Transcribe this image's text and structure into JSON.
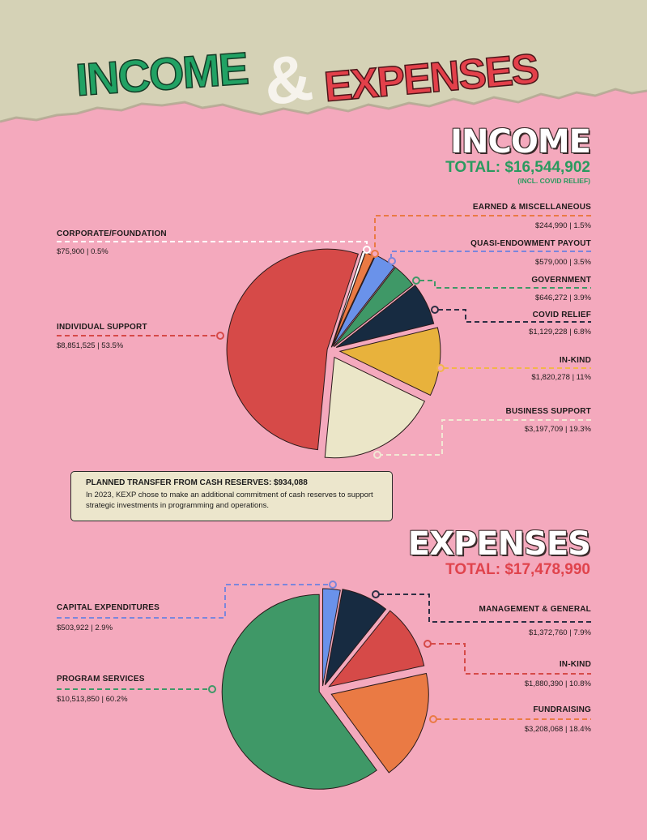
{
  "header": {
    "word1": "INCOME",
    "ampersand": "&",
    "word2": "EXPENSES"
  },
  "income": {
    "heading": "INCOME",
    "total_label": "TOTAL: $16,544,902",
    "total_note": "(INCL. COVID RELIEF)"
  },
  "note": {
    "title": "PLANNED TRANSFER FROM CASH RESERVES: $934,088",
    "body": "In 2023, KEXP chose to make an additional commitment of cash reserves to support strategic investments in programming and operations."
  },
  "expenses": {
    "heading": "EXPENSES",
    "total_label": "TOTAL: $17,478,990"
  },
  "colors": {
    "background": "#f4a9bd",
    "top_band": "#d5d2b6",
    "income_green": "#2a9a5f",
    "expense_red": "#e0434c"
  },
  "chart_data": [
    {
      "type": "pie",
      "title": "INCOME",
      "subtitle": "TOTAL: $16,544,902 (INCL. COVID RELIEF)",
      "total": 16544902,
      "slices": [
        {
          "label": "CORPORATE/FOUNDATION",
          "value": 75900,
          "value_text": "$75,900 | 0.5%",
          "percent": 0.5,
          "color": "#ffffff"
        },
        {
          "label": "EARNED & MISCELLANEOUS",
          "value": 244990,
          "value_text": "$244,990 | 1.5%",
          "percent": 1.5,
          "color": "#ea7a44"
        },
        {
          "label": "QUASI-ENDOWMENT PAYOUT",
          "value": 579000,
          "value_text": "$579,000 | 3.5%",
          "percent": 3.5,
          "color": "#6a92ea"
        },
        {
          "label": "GOVERNMENT",
          "value": 646272,
          "value_text": "$646,272 | 3.9%",
          "percent": 3.9,
          "color": "#3f9867"
        },
        {
          "label": "COVID RELIEF",
          "value": 1129228,
          "value_text": "$1,129,228 | 6.8%",
          "percent": 6.8,
          "color": "#172b41"
        },
        {
          "label": "IN-KIND",
          "value": 1820278,
          "value_text": "$1,820,278 | 11%",
          "percent": 11,
          "color": "#e8b23c"
        },
        {
          "label": "BUSINESS SUPPORT",
          "value": 3197709,
          "value_text": "$3,197,709 | 19.3%",
          "percent": 19.3,
          "color": "#ebe6c8"
        },
        {
          "label": "INDIVIDUAL SUPPORT",
          "value": 8851525,
          "value_text": "$8,851,525 | 53.5%",
          "percent": 53.5,
          "color": "#d64a48"
        }
      ]
    },
    {
      "type": "pie",
      "title": "EXPENSES",
      "subtitle": "TOTAL: $17,478,990",
      "total": 17478990,
      "slices": [
        {
          "label": "CAPITAL EXPENDITURES",
          "value": 503922,
          "value_text": "$503,922 | 2.9%",
          "percent": 2.9,
          "color": "#6a92ea"
        },
        {
          "label": "MANAGEMENT & GENERAL",
          "value": 1372760,
          "value_text": "$1,372,760 | 7.9%",
          "percent": 7.9,
          "color": "#172b41"
        },
        {
          "label": "IN-KIND",
          "value": 1880390,
          "value_text": "$1,880,390 | 10.8%",
          "percent": 10.8,
          "color": "#d64a48"
        },
        {
          "label": "FUNDRAISING",
          "value": 3208068,
          "value_text": "$3,208,068 | 18.4%",
          "percent": 18.4,
          "color": "#ea7a44"
        },
        {
          "label": "PROGRAM SERVICES",
          "value": 10513850,
          "value_text": "$10,513,850 | 60.2%",
          "percent": 60.2,
          "color": "#3f9867"
        }
      ]
    }
  ]
}
